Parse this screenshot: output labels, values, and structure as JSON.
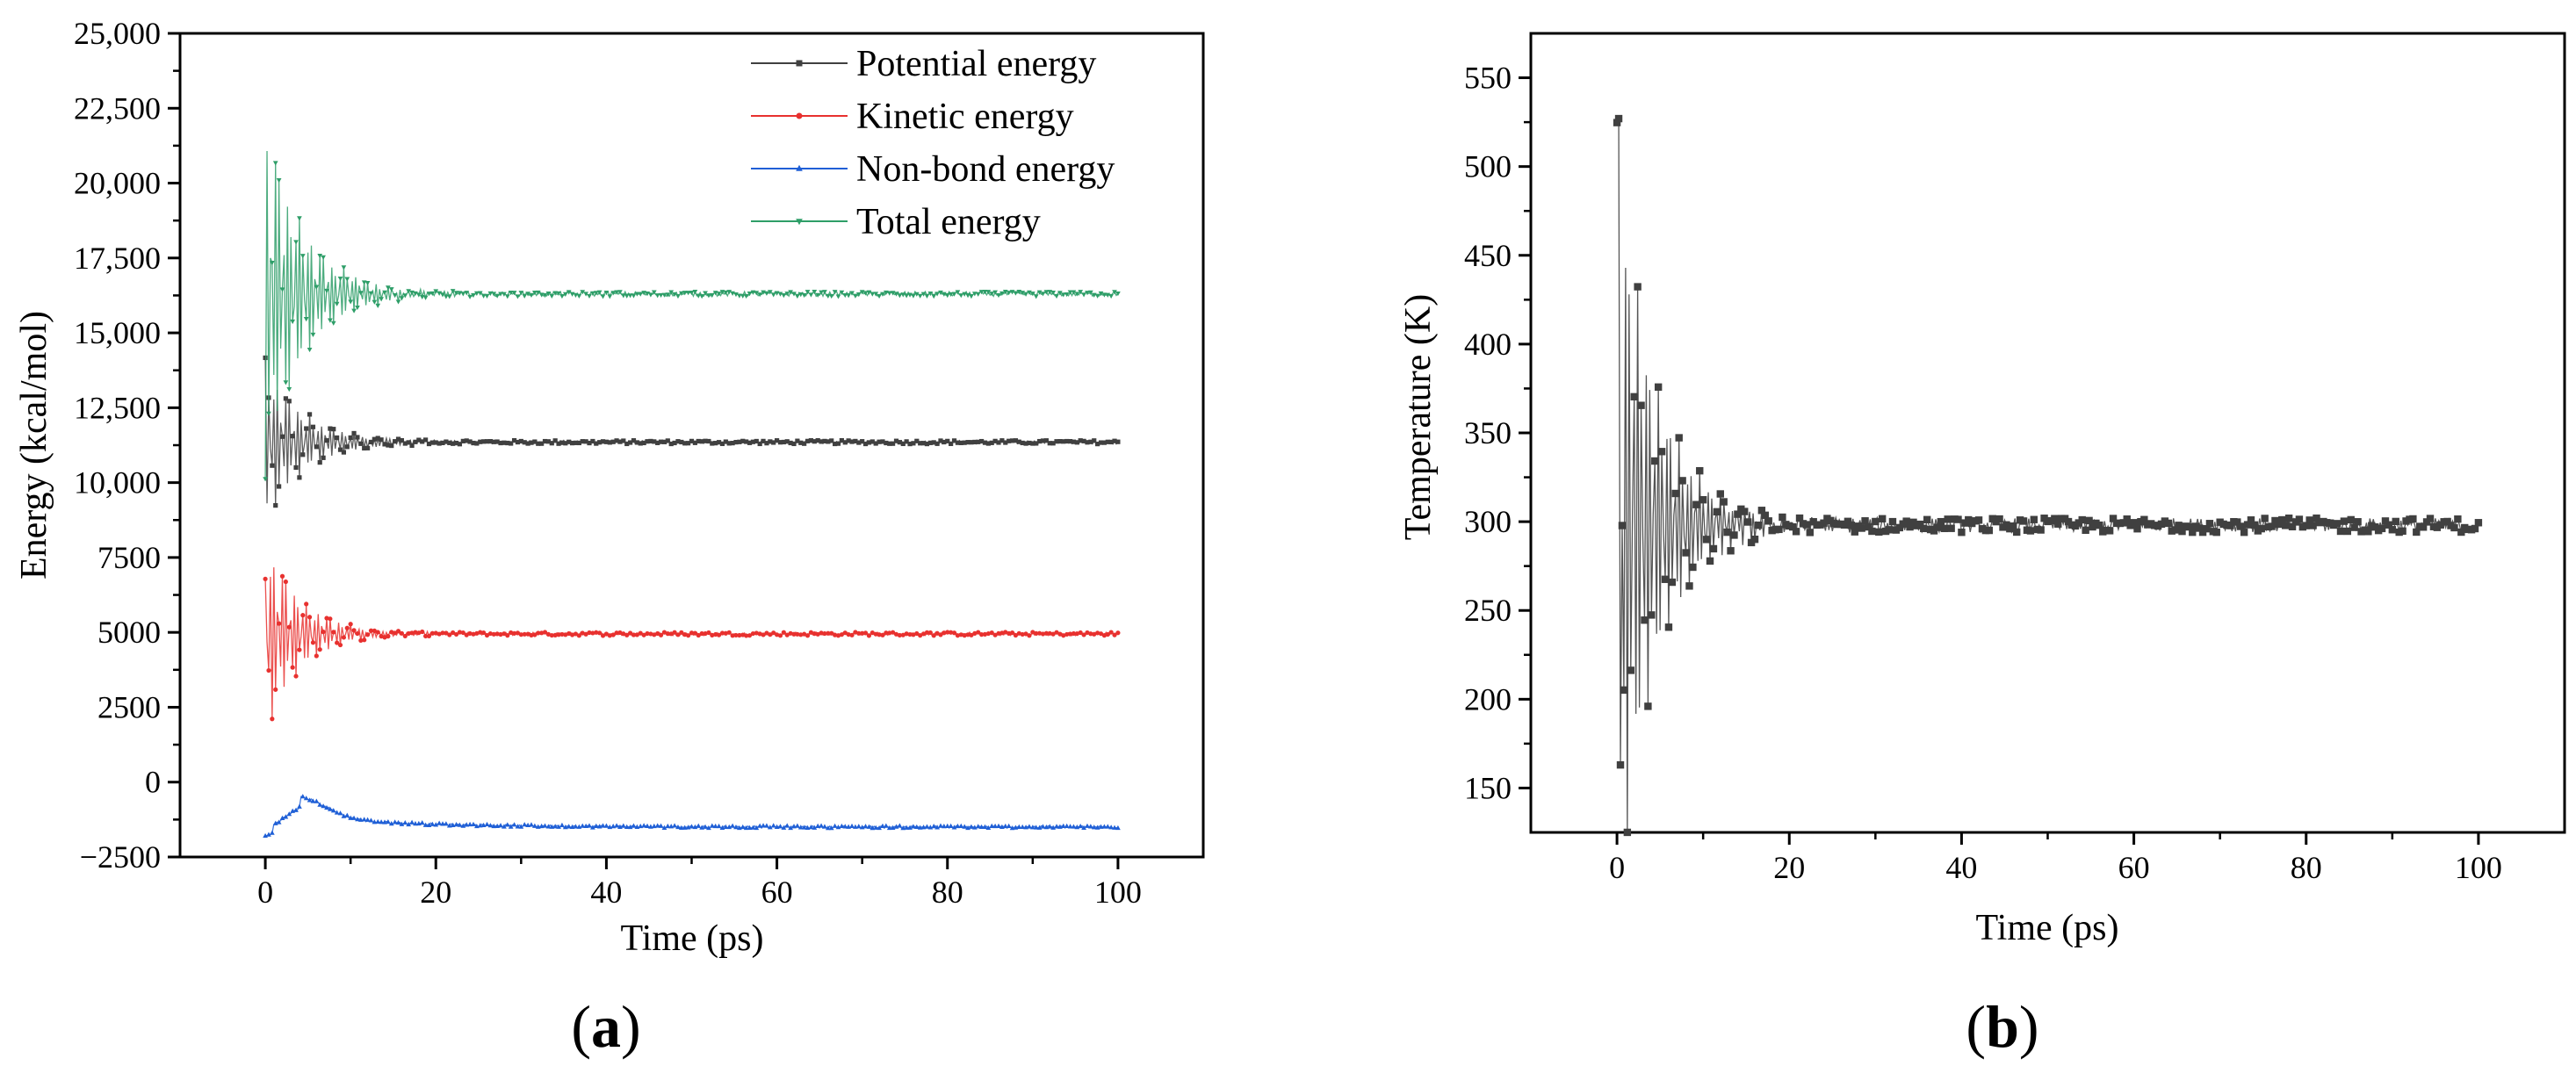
{
  "chart_data": [
    {
      "type": "line",
      "panel_label": {
        "open": "(",
        "letter": "a",
        "close": ")"
      },
      "xlabel": "Time (ps)",
      "ylabel": "Energy (kcal/mol)",
      "xlim": [
        -10,
        110
      ],
      "ylim": [
        -2500,
        25000
      ],
      "x_ticks": [
        0,
        20,
        40,
        60,
        80,
        100
      ],
      "y_ticks": [
        -2500,
        0,
        2500,
        5000,
        7500,
        10000,
        12500,
        15000,
        17500,
        20000,
        22500,
        25000
      ],
      "y_tick_labels": [
        "−2500",
        "0",
        "2500",
        "5000",
        "7500",
        "10,000",
        "12,500",
        "15,000",
        "17,500",
        "20,000",
        "22,500",
        "25,000"
      ],
      "legend_position": "top-right",
      "series": [
        {
          "name": "Potential energy",
          "color": "#404040",
          "marker": "square",
          "baseline": 11350,
          "equilibrium": 11350,
          "t0": 12000,
          "amp0": 2800,
          "tau": 4.5,
          "noise": 60
        },
        {
          "name": "Kinetic energy",
          "color": "#e8312f",
          "marker": "circle",
          "baseline": 4950,
          "equilibrium": 4950,
          "t0": 5000,
          "amp0": 3500,
          "tau": 4.0,
          "noise": 60
        },
        {
          "name": "Non-bond energy",
          "color": "#1f5fd6",
          "marker": "triangle",
          "baseline": -1500,
          "equilibrium": -1500,
          "t0": -1300,
          "amp0": 200,
          "tau": 3,
          "noise": 40
        },
        {
          "name": "Total energy",
          "color": "#2e9e68",
          "marker": "triangle-down",
          "baseline": 16300,
          "equilibrium": 16300,
          "t0": 17000,
          "amp0": 6300,
          "tau": 4.5,
          "noise": 80
        }
      ]
    },
    {
      "type": "line",
      "panel_label": {
        "open": "(",
        "letter": "b",
        "close": ")"
      },
      "xlabel": "Time (ps)",
      "ylabel": "Temperature (K)",
      "xlim": [
        -10,
        110
      ],
      "ylim": [
        125,
        575
      ],
      "x_ticks": [
        0,
        20,
        40,
        60,
        80,
        100
      ],
      "y_ticks": [
        150,
        200,
        250,
        300,
        350,
        400,
        450,
        500,
        550
      ],
      "series": [
        {
          "color": "#404040",
          "marker": "square",
          "equilibrium": 298,
          "peak_max": 527,
          "peak_min": 163,
          "tau": 4.5,
          "noise": 4
        }
      ]
    }
  ]
}
